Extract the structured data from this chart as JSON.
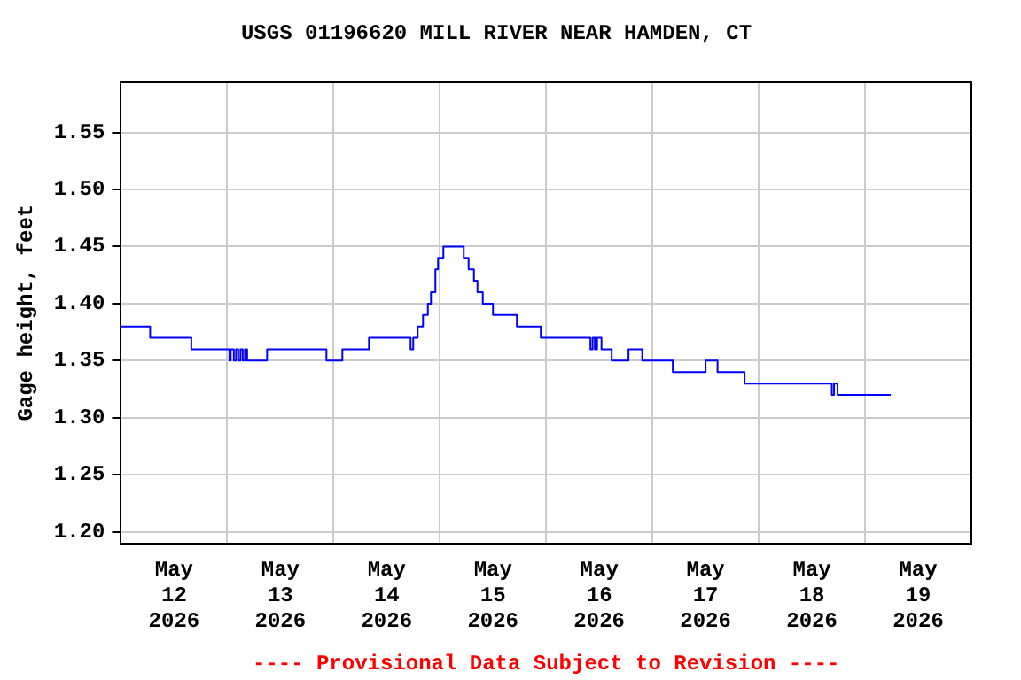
{
  "chart_data": {
    "type": "step",
    "title": "USGS 01196620 MILL RIVER NEAR HAMDEN, CT",
    "ylabel": "Gage height, feet",
    "annotations": [
      "---- Provisional Data Subject to Revision ----"
    ],
    "xlim": [
      "2026-05-12T00:00",
      "2026-05-20T00:00"
    ],
    "xticks": [
      {
        "value": "2026-05-12T12:00",
        "label": "May\n12\n2026"
      },
      {
        "value": "2026-05-13T00:00",
        "label": null
      },
      {
        "value": "2026-05-13T12:00",
        "label": "May\n13\n2026"
      },
      {
        "value": "2026-05-14T00:00",
        "label": null
      },
      {
        "value": "2026-05-14T12:00",
        "label": "May\n14\n2026"
      },
      {
        "value": "2026-05-15T00:00",
        "label": null
      },
      {
        "value": "2026-05-15T12:00",
        "label": "May\n15\n2026"
      },
      {
        "value": "2026-05-16T00:00",
        "label": null
      },
      {
        "value": "2026-05-16T12:00",
        "label": "May\n16\n2026"
      },
      {
        "value": "2026-05-17T00:00",
        "label": null
      },
      {
        "value": "2026-05-17T12:00",
        "label": "May\n17\n2026"
      },
      {
        "value": "2026-05-18T00:00",
        "label": null
      },
      {
        "value": "2026-05-18T12:00",
        "label": "May\n18\n2026"
      },
      {
        "value": "2026-05-19T00:00",
        "label": null
      },
      {
        "value": "2026-05-19T12:00",
        "label": "May\n19\n2026"
      }
    ],
    "ylim": [
      1.19,
      1.594
    ],
    "yticks": [
      {
        "value": 1.2,
        "label": "1.20"
      },
      {
        "value": 1.25,
        "label": "1.25"
      },
      {
        "value": 1.3,
        "label": "1.30"
      },
      {
        "value": 1.35,
        "label": "1.35"
      },
      {
        "value": 1.4,
        "label": "1.40"
      },
      {
        "value": 1.45,
        "label": "1.45"
      },
      {
        "value": 1.5,
        "label": "1.50"
      },
      {
        "value": 1.55,
        "label": "1.55"
      }
    ],
    "grid": true,
    "legend": false,
    "marker": "none",
    "line_style": "solid",
    "series": [
      {
        "color": "#0000ff",
        "x": [
          "2026-05-12T00:00",
          "2026-05-12T06:36",
          "2026-05-12T15:54",
          "2026-05-13T00:30",
          "2026-05-13T00:48",
          "2026-05-13T01:30",
          "2026-05-13T02:00",
          "2026-05-13T02:30",
          "2026-05-13T03:00",
          "2026-05-13T03:30",
          "2026-05-13T04:00",
          "2026-05-13T04:30",
          "2026-05-13T09:00",
          "2026-05-13T22:24",
          "2026-05-14T02:00",
          "2026-05-14T08:00",
          "2026-05-14T17:24",
          "2026-05-14T18:00",
          "2026-05-14T19:00",
          "2026-05-14T20:12",
          "2026-05-14T21:18",
          "2026-05-14T22:00",
          "2026-05-14T23:00",
          "2026-05-14T23:36",
          "2026-05-15T00:48",
          "2026-05-15T05:24",
          "2026-05-15T06:30",
          "2026-05-15T07:42",
          "2026-05-15T08:30",
          "2026-05-15T09:42",
          "2026-05-15T12:00",
          "2026-05-15T17:24",
          "2026-05-15T22:48",
          "2026-05-16T10:00",
          "2026-05-16T10:30",
          "2026-05-16T11:00",
          "2026-05-16T11:30",
          "2026-05-16T12:30",
          "2026-05-16T14:48",
          "2026-05-16T18:36",
          "2026-05-16T21:42",
          "2026-05-17T04:36",
          "2026-05-17T12:00",
          "2026-05-17T14:42",
          "2026-05-17T20:48",
          "2026-05-18T16:30",
          "2026-05-18T17:00",
          "2026-05-18T17:48",
          "2026-05-19T05:48"
        ],
        "values": [
          1.38,
          1.37,
          1.36,
          1.35,
          1.36,
          1.35,
          1.36,
          1.35,
          1.36,
          1.35,
          1.36,
          1.35,
          1.36,
          1.35,
          1.36,
          1.37,
          1.36,
          1.37,
          1.38,
          1.39,
          1.4,
          1.41,
          1.43,
          1.44,
          1.45,
          1.44,
          1.43,
          1.42,
          1.41,
          1.4,
          1.39,
          1.38,
          1.37,
          1.36,
          1.37,
          1.36,
          1.37,
          1.36,
          1.35,
          1.36,
          1.35,
          1.34,
          1.35,
          1.34,
          1.33,
          1.32,
          1.33,
          1.32,
          1.32
        ]
      }
    ]
  }
}
